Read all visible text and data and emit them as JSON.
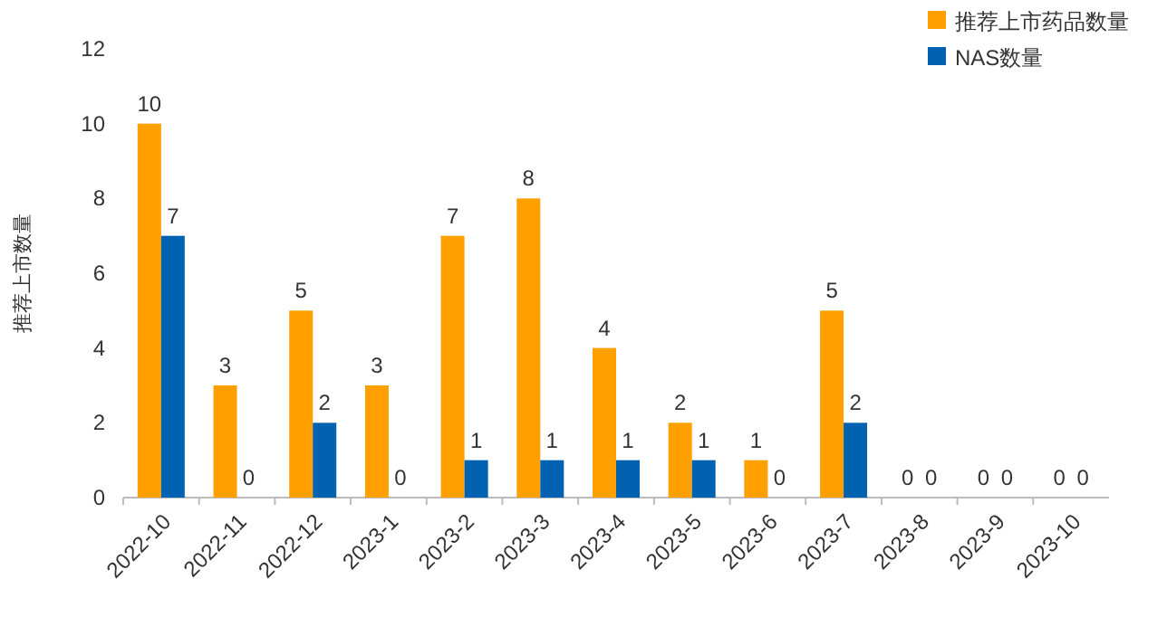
{
  "chart_data": {
    "type": "bar",
    "ylabel": "推荐上市数量",
    "categories": [
      "2022-10",
      "2022-11",
      "2022-12",
      "2023-1",
      "2023-2",
      "2023-3",
      "2023-4",
      "2023-5",
      "2023-6",
      "2023-7",
      "2023-8",
      "2023-9",
      "2023-10"
    ],
    "series": [
      {
        "name": "推荐上市药品数量",
        "color": "#ff9f00",
        "values": [
          10,
          3,
          5,
          3,
          7,
          8,
          4,
          2,
          1,
          5,
          0,
          0,
          0
        ]
      },
      {
        "name": "NAS数量",
        "color": "#0062b1",
        "values": [
          7,
          0,
          2,
          0,
          1,
          1,
          1,
          1,
          0,
          2,
          0,
          0,
          0
        ]
      }
    ],
    "ylim": [
      0,
      12
    ],
    "yticks": [
      0,
      2,
      4,
      6,
      8,
      10,
      12
    ],
    "legend": "top right",
    "data_labels": true
  }
}
